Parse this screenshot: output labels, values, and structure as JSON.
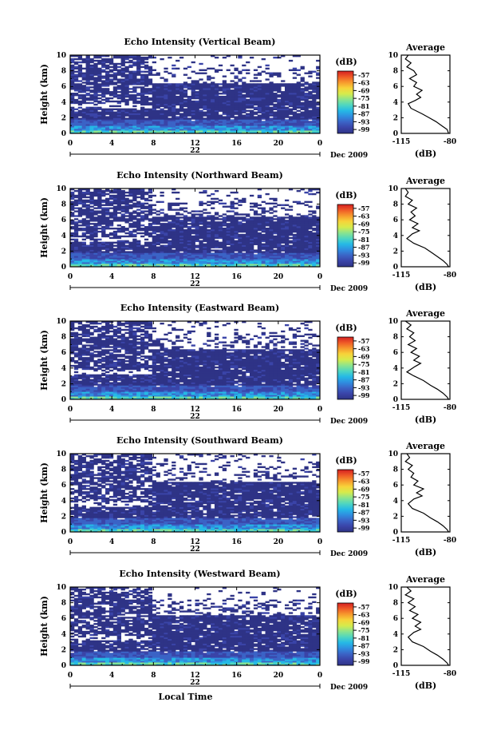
{
  "chart_data": [
    {
      "type": "heatmap",
      "title": "Echo Intensity (Vertical Beam)",
      "ylabel": "Height (km)",
      "x_ticks": [
        "0",
        "4",
        "8",
        "12",
        "16",
        "20",
        "0"
      ],
      "xlim": [
        0,
        24
      ],
      "ylim": [
        0,
        10
      ],
      "y_ticks": [
        "0",
        "2",
        "4",
        "6",
        "8",
        "10"
      ],
      "date_day": "22",
      "date_label": "Dec 2009",
      "colorbar": {
        "unit": "(dB)",
        "ticks": [
          "-57",
          "-63",
          "-69",
          "-75",
          "-81",
          "-87",
          "-93",
          "-99"
        ]
      },
      "average": {
        "title": "Average",
        "xlabel": "(dB)",
        "x_ticks": [
          "-115",
          "-80"
        ],
        "xlim": [
          -115,
          -80
        ],
        "profile": [
          [
            -110,
            10
          ],
          [
            -112,
            9.5
          ],
          [
            -108,
            9
          ],
          [
            -111,
            8.5
          ],
          [
            -106,
            8
          ],
          [
            -104,
            7.5
          ],
          [
            -109,
            7
          ],
          [
            -104,
            6.5
          ],
          [
            -106,
            6
          ],
          [
            -100,
            5.5
          ],
          [
            -104,
            5
          ],
          [
            -101,
            4.6
          ],
          [
            -105,
            4.2
          ],
          [
            -110,
            3.8
          ],
          [
            -108,
            3.2
          ],
          [
            -100,
            2.5
          ],
          [
            -95,
            2
          ],
          [
            -90,
            1.5
          ],
          [
            -86,
            1
          ],
          [
            -82,
            0.5
          ],
          [
            -81,
            0
          ]
        ]
      }
    },
    {
      "type": "heatmap",
      "title": "Echo Intensity (Northward Beam)",
      "ylabel": "Height (km)",
      "x_ticks": [
        "0",
        "4",
        "8",
        "12",
        "16",
        "20",
        "0"
      ],
      "xlim": [
        0,
        24
      ],
      "ylim": [
        0,
        10
      ],
      "y_ticks": [
        "0",
        "2",
        "4",
        "6",
        "8",
        "10"
      ],
      "date_day": "22",
      "date_label": "Dec 2009",
      "colorbar": {
        "unit": "(dB)",
        "ticks": [
          "-57",
          "-63",
          "-69",
          "-75",
          "-81",
          "-87",
          "-93",
          "-99"
        ]
      },
      "average": {
        "title": "Average",
        "xlabel": "(dB)",
        "x_ticks": [
          "-115",
          "-80"
        ],
        "xlim": [
          -115,
          -80
        ],
        "profile": [
          [
            -112,
            10
          ],
          [
            -110,
            9.5
          ],
          [
            -112,
            9
          ],
          [
            -107,
            8.5
          ],
          [
            -110,
            8
          ],
          [
            -104,
            7.5
          ],
          [
            -108,
            7
          ],
          [
            -105,
            6.5
          ],
          [
            -109,
            6
          ],
          [
            -103,
            5.5
          ],
          [
            -107,
            5
          ],
          [
            -102,
            4.6
          ],
          [
            -107,
            4.2
          ],
          [
            -111,
            3.6
          ],
          [
            -106,
            3
          ],
          [
            -98,
            2.4
          ],
          [
            -93,
            1.8
          ],
          [
            -89,
            1.3
          ],
          [
            -85,
            0.8
          ],
          [
            -82,
            0.3
          ],
          [
            -81,
            0
          ]
        ]
      }
    },
    {
      "type": "heatmap",
      "title": "Echo Intensity (Eastward Beam)",
      "ylabel": "Height (km)",
      "x_ticks": [
        "0",
        "4",
        "8",
        "12",
        "16",
        "20",
        "0"
      ],
      "xlim": [
        0,
        24
      ],
      "ylim": [
        0,
        10
      ],
      "y_ticks": [
        "0",
        "2",
        "4",
        "6",
        "8",
        "10"
      ],
      "date_day": "22",
      "date_label": "Dec 2009",
      "colorbar": {
        "unit": "(dB)",
        "ticks": [
          "-57",
          "-63",
          "-69",
          "-75",
          "-81",
          "-87",
          "-93",
          "-99"
        ]
      },
      "average": {
        "title": "Average",
        "xlabel": "(dB)",
        "x_ticks": [
          "-115",
          "-80"
        ],
        "xlim": [
          -115,
          -80
        ],
        "profile": [
          [
            -112,
            10
          ],
          [
            -108,
            9.5
          ],
          [
            -111,
            9
          ],
          [
            -106,
            8.5
          ],
          [
            -109,
            8
          ],
          [
            -105,
            7.5
          ],
          [
            -110,
            7
          ],
          [
            -104,
            6.5
          ],
          [
            -108,
            6
          ],
          [
            -102,
            5.5
          ],
          [
            -106,
            5
          ],
          [
            -101,
            4.6
          ],
          [
            -105,
            4.2
          ],
          [
            -111,
            3.5
          ],
          [
            -106,
            3
          ],
          [
            -99,
            2.4
          ],
          [
            -94,
            1.8
          ],
          [
            -89,
            1.3
          ],
          [
            -85,
            0.8
          ],
          [
            -82,
            0.3
          ],
          [
            -81,
            0
          ]
        ]
      }
    },
    {
      "type": "heatmap",
      "title": "Echo Intensity (Southward Beam)",
      "ylabel": "Height (km)",
      "x_ticks": [
        "0",
        "4",
        "8",
        "12",
        "16",
        "20",
        "0"
      ],
      "xlim": [
        0,
        24
      ],
      "ylim": [
        0,
        10
      ],
      "y_ticks": [
        "0",
        "2",
        "4",
        "6",
        "8",
        "10"
      ],
      "date_day": "22",
      "date_label": "Dec 2009",
      "colorbar": {
        "unit": "(dB)",
        "ticks": [
          "-57",
          "-63",
          "-69",
          "-75",
          "-81",
          "-87",
          "-93",
          "-99"
        ]
      },
      "average": {
        "title": "Average",
        "xlabel": "(dB)",
        "x_ticks": [
          "-115",
          "-80"
        ],
        "xlim": [
          -115,
          -80
        ],
        "profile": [
          [
            -111,
            10
          ],
          [
            -109,
            9.5
          ],
          [
            -112,
            9
          ],
          [
            -107,
            8.5
          ],
          [
            -110,
            8
          ],
          [
            -106,
            7.5
          ],
          [
            -108,
            7
          ],
          [
            -103,
            6.5
          ],
          [
            -106,
            6
          ],
          [
            -99,
            5.5
          ],
          [
            -104,
            5
          ],
          [
            -100,
            4.6
          ],
          [
            -106,
            4.2
          ],
          [
            -110,
            3.6
          ],
          [
            -107,
            3
          ],
          [
            -99,
            2.4
          ],
          [
            -94,
            1.8
          ],
          [
            -89,
            1.3
          ],
          [
            -85,
            0.8
          ],
          [
            -82,
            0.3
          ],
          [
            -81,
            0
          ]
        ]
      }
    },
    {
      "type": "heatmap",
      "title": "Echo Intensity (Westward Beam)",
      "ylabel": "Height (km)",
      "xlabel": "Local Time",
      "x_ticks": [
        "0",
        "4",
        "8",
        "12",
        "16",
        "20",
        "0"
      ],
      "xlim": [
        0,
        24
      ],
      "ylim": [
        0,
        10
      ],
      "y_ticks": [
        "0",
        "2",
        "4",
        "6",
        "8",
        "10"
      ],
      "date_day": "22",
      "date_label": "Dec 2009",
      "colorbar": {
        "unit": "(dB)",
        "ticks": [
          "-57",
          "-63",
          "-69",
          "-75",
          "-81",
          "-87",
          "-93",
          "-99"
        ]
      },
      "average": {
        "title": "Average",
        "xlabel": "(dB)",
        "x_ticks": [
          "-115",
          "-80"
        ],
        "xlim": [
          -115,
          -80
        ],
        "profile": [
          [
            -111,
            10
          ],
          [
            -108,
            9.5
          ],
          [
            -112,
            9
          ],
          [
            -106,
            8.5
          ],
          [
            -110,
            8
          ],
          [
            -105,
            7.5
          ],
          [
            -109,
            7
          ],
          [
            -103,
            6.5
          ],
          [
            -107,
            6
          ],
          [
            -101,
            5.5
          ],
          [
            -105,
            5
          ],
          [
            -101,
            4.6
          ],
          [
            -106,
            4.2
          ],
          [
            -110,
            3.6
          ],
          [
            -107,
            3
          ],
          [
            -99,
            2.4
          ],
          [
            -94,
            1.8
          ],
          [
            -89,
            1.3
          ],
          [
            -85,
            0.8
          ],
          [
            -82,
            0.3
          ],
          [
            -81,
            0
          ]
        ]
      }
    }
  ]
}
